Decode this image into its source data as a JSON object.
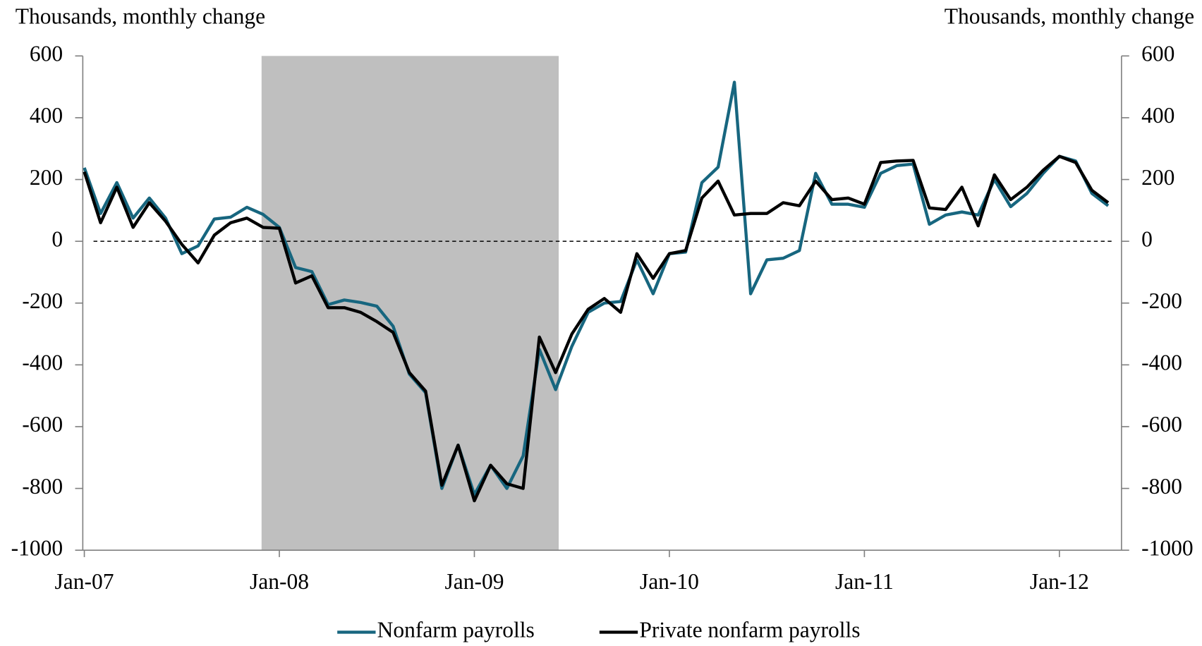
{
  "chart_data": {
    "type": "line",
    "y_label": "Thousands, monthly change",
    "y2_label": "Thousands, monthly change",
    "categories": [
      "Jan-07",
      null,
      null,
      null,
      null,
      null,
      null,
      null,
      null,
      null,
      null,
      null,
      "Jan-08",
      null,
      null,
      null,
      null,
      null,
      null,
      null,
      null,
      null,
      null,
      null,
      "Jan-09",
      null,
      null,
      null,
      null,
      null,
      null,
      null,
      null,
      null,
      null,
      null,
      "Jan-10",
      null,
      null,
      null,
      null,
      null,
      null,
      null,
      null,
      null,
      null,
      null,
      "Jan-11",
      null,
      null,
      null,
      null,
      null,
      null,
      null,
      null,
      null,
      null,
      null,
      "Jan-12",
      null,
      null,
      null
    ],
    "series": [
      {
        "name": "Nonfarm payrolls",
        "color": "#17667f",
        "values": [
          238,
          90,
          190,
          75,
          140,
          75,
          -40,
          -15,
          72,
          78,
          110,
          87,
          45,
          -85,
          -98,
          -205,
          -190,
          -198,
          -210,
          -275,
          -430,
          -490,
          -800,
          -660,
          -820,
          -725,
          -800,
          -695,
          -350,
          -480,
          -340,
          -230,
          -200,
          -195,
          -60,
          -170,
          -40,
          -35,
          190,
          240,
          515,
          -170,
          -60,
          -55,
          -30,
          220,
          120,
          120,
          110,
          220,
          245,
          250,
          55,
          85,
          95,
          85,
          200,
          112,
          155,
          220,
          275,
          260,
          155,
          115
        ]
      },
      {
        "name": "Private nonfarm payrolls",
        "color": "#000000",
        "values": [
          225,
          60,
          175,
          45,
          125,
          65,
          -10,
          -70,
          20,
          60,
          75,
          45,
          42,
          -135,
          -112,
          -215,
          -215,
          -230,
          -260,
          -295,
          -425,
          -485,
          -790,
          -660,
          -840,
          -725,
          -785,
          -800,
          -310,
          -425,
          -300,
          -220,
          -185,
          -230,
          -40,
          -120,
          -40,
          -30,
          140,
          195,
          85,
          90,
          90,
          125,
          115,
          195,
          135,
          140,
          120,
          255,
          260,
          262,
          108,
          103,
          175,
          50,
          215,
          135,
          175,
          230,
          275,
          255,
          165,
          125
        ]
      }
    ],
    "ylim": [
      -1000,
      600
    ],
    "yticks": [
      -1000,
      -800,
      -600,
      -400,
      -200,
      0,
      200,
      400,
      600
    ],
    "y2lim": [
      -1000,
      600
    ],
    "y2ticks": [
      -1000,
      -800,
      -600,
      -400,
      -200,
      0,
      200,
      400,
      600
    ],
    "legend": "bottom"
  }
}
